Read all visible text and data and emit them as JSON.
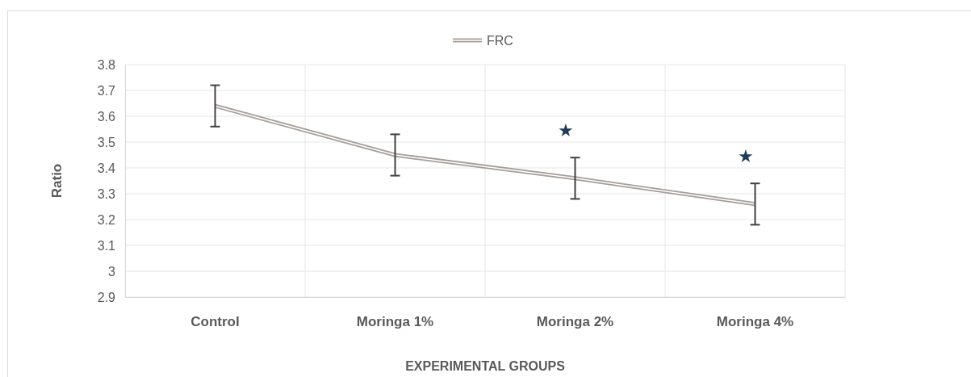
{
  "chart_data": {
    "type": "line",
    "categories": [
      "Control",
      "Moringa 1%",
      "Moringa 2%",
      "Moringa 4%"
    ],
    "series": [
      {
        "name": "FRC",
        "color": "#a59d98",
        "values": [
          3.64,
          3.45,
          3.36,
          3.26
        ],
        "errors": [
          0.08,
          0.08,
          0.08,
          0.08
        ]
      }
    ],
    "xlabel": "EXPERIMENTAL GROUPS",
    "ylabel": "Ratio",
    "ylim": [
      2.9,
      3.8
    ],
    "yticks": [
      2.9,
      3,
      3.1,
      3.2,
      3.3,
      3.4,
      3.5,
      3.6,
      3.7,
      3.8
    ],
    "grid": true,
    "legend": "top",
    "marker": "none",
    "line_style": "solid",
    "annotations": [
      "★",
      "★"
    ]
  }
}
